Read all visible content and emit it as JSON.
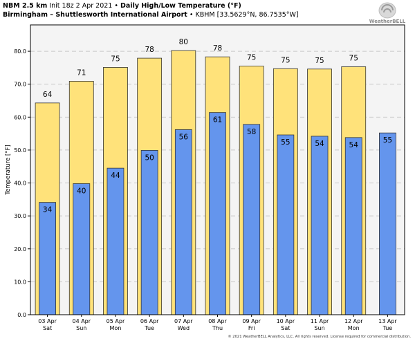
{
  "header": {
    "model": "NBM 2.5 km",
    "init": "Init 18z 2 Apr 2021",
    "title": "Daily High/Low Temperature (°F)",
    "station_name": "Birmingham – Shuttlesworth International Airport",
    "station_id": "KBHM [33.5629°N, 86.7535°W]",
    "bullet": "•"
  },
  "logo": {
    "text": "WeatherBELL"
  },
  "footer": {
    "text": "© 2021 WeatherBELL Analytics, LLC. All rights reserved. License required for commercial distribution."
  },
  "chart_data": {
    "type": "bar",
    "ylabel": "Temperature [°F]",
    "ylim": [
      0,
      88
    ],
    "yticks": [
      "0.0",
      "10.0",
      "20.0",
      "30.0",
      "40.0",
      "50.0",
      "60.0",
      "70.0",
      "80.0"
    ],
    "categories": [
      "03 Apr",
      "04 Apr",
      "05 Apr",
      "06 Apr",
      "07 Apr",
      "08 Apr",
      "09 Apr",
      "10 Apr",
      "11 Apr",
      "12 Apr",
      "13 Apr"
    ],
    "weekdays": [
      "Sat",
      "Sun",
      "Mon",
      "Tue",
      "Wed",
      "Thu",
      "Fri",
      "Sat",
      "Sun",
      "Mon",
      "Tue"
    ],
    "series": [
      {
        "values": [
          64.3,
          70.9,
          75.1,
          77.9,
          80.2,
          78.3,
          75.5,
          74.7,
          74.6,
          75.3,
          null
        ],
        "labels": [
          "64",
          "71",
          "75",
          "78",
          "80",
          "78",
          "75",
          "75",
          "75",
          "75",
          ""
        ],
        "color": "#ffe27a"
      },
      {
        "values": [
          34.1,
          39.8,
          44.5,
          49.9,
          56.2,
          61.4,
          57.8,
          54.6,
          54.2,
          53.8,
          55.2
        ],
        "labels": [
          "34",
          "40",
          "44",
          "50",
          "56",
          "61",
          "58",
          "55",
          "54",
          "54",
          "55"
        ],
        "color": "#6495ed"
      }
    ],
    "grid": true,
    "plot_background": "#f4f4f4"
  }
}
